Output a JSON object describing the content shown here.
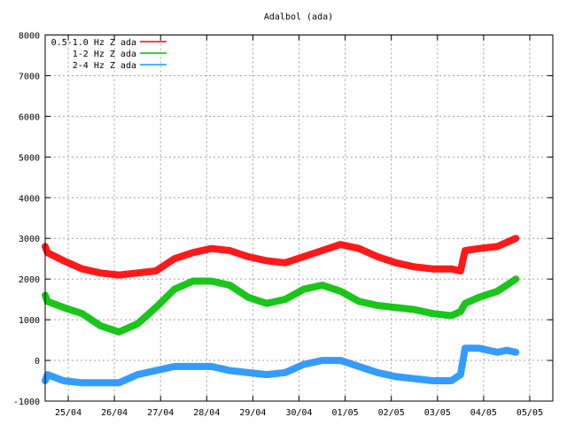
{
  "chart_data": {
    "type": "line",
    "title": "Adalbol (ada)",
    "xlabel": "",
    "ylabel": "",
    "ylim": [
      -1000,
      8000
    ],
    "y_ticks": [
      -1000,
      0,
      1000,
      2000,
      3000,
      4000,
      5000,
      6000,
      7000,
      8000
    ],
    "x_range": [
      0,
      11
    ],
    "x_ticks": [
      {
        "pos": 0.5,
        "label": "25/04"
      },
      {
        "pos": 1.5,
        "label": "26/04"
      },
      {
        "pos": 2.5,
        "label": "27/04"
      },
      {
        "pos": 3.5,
        "label": "28/04"
      },
      {
        "pos": 4.5,
        "label": "29/04"
      },
      {
        "pos": 5.5,
        "label": "30/04"
      },
      {
        "pos": 6.5,
        "label": "01/05"
      },
      {
        "pos": 7.5,
        "label": "02/05"
      },
      {
        "pos": 8.5,
        "label": "03/05"
      },
      {
        "pos": 9.5,
        "label": "04/05"
      },
      {
        "pos": 10.5,
        "label": "05/05"
      }
    ],
    "grid": true,
    "legend_position": "top-left",
    "series": [
      {
        "name": "0.5-1.0 Hz Z ada",
        "color": "#ff0000",
        "x": [
          0,
          0.05,
          0.4,
          0.8,
          1.2,
          1.6,
          2.0,
          2.4,
          2.8,
          3.2,
          3.6,
          4.0,
          4.4,
          4.8,
          5.2,
          5.6,
          6.0,
          6.4,
          6.8,
          7.2,
          7.6,
          8.0,
          8.4,
          8.8,
          9.0,
          9.1,
          9.4,
          9.8,
          10.0,
          10.2
        ],
        "values": [
          2800,
          2650,
          2450,
          2250,
          2150,
          2100,
          2150,
          2200,
          2500,
          2650,
          2750,
          2700,
          2550,
          2450,
          2400,
          2550,
          2700,
          2850,
          2750,
          2550,
          2400,
          2300,
          2250,
          2250,
          2200,
          2700,
          2750,
          2800,
          2900,
          3000
        ]
      },
      {
        "name": "1-2 Hz Z ada",
        "color": "#00c000",
        "x": [
          0,
          0.05,
          0.4,
          0.8,
          1.2,
          1.6,
          2.0,
          2.4,
          2.8,
          3.2,
          3.6,
          4.0,
          4.4,
          4.8,
          5.2,
          5.6,
          6.0,
          6.4,
          6.8,
          7.2,
          7.6,
          8.0,
          8.4,
          8.8,
          9.0,
          9.1,
          9.4,
          9.8,
          10.0,
          10.2
        ],
        "values": [
          1600,
          1450,
          1300,
          1150,
          850,
          700,
          900,
          1300,
          1750,
          1950,
          1950,
          1850,
          1550,
          1400,
          1500,
          1750,
          1850,
          1700,
          1450,
          1350,
          1300,
          1250,
          1150,
          1100,
          1200,
          1400,
          1550,
          1700,
          1850,
          2000
        ]
      },
      {
        "name": "2-4 Hz Z ada",
        "color": "#1e90ff",
        "x": [
          0,
          0.05,
          0.4,
          0.8,
          1.2,
          1.6,
          2.0,
          2.4,
          2.8,
          3.2,
          3.6,
          4.0,
          4.4,
          4.8,
          5.2,
          5.6,
          6.0,
          6.4,
          6.8,
          7.2,
          7.6,
          8.0,
          8.4,
          8.8,
          9.0,
          9.1,
          9.4,
          9.8,
          10.0,
          10.2
        ],
        "values": [
          -500,
          -350,
          -500,
          -550,
          -550,
          -550,
          -350,
          -250,
          -150,
          -150,
          -150,
          -250,
          -300,
          -350,
          -300,
          -100,
          0,
          0,
          -150,
          -300,
          -400,
          -450,
          -500,
          -500,
          -350,
          300,
          300,
          200,
          250,
          200
        ]
      }
    ]
  }
}
